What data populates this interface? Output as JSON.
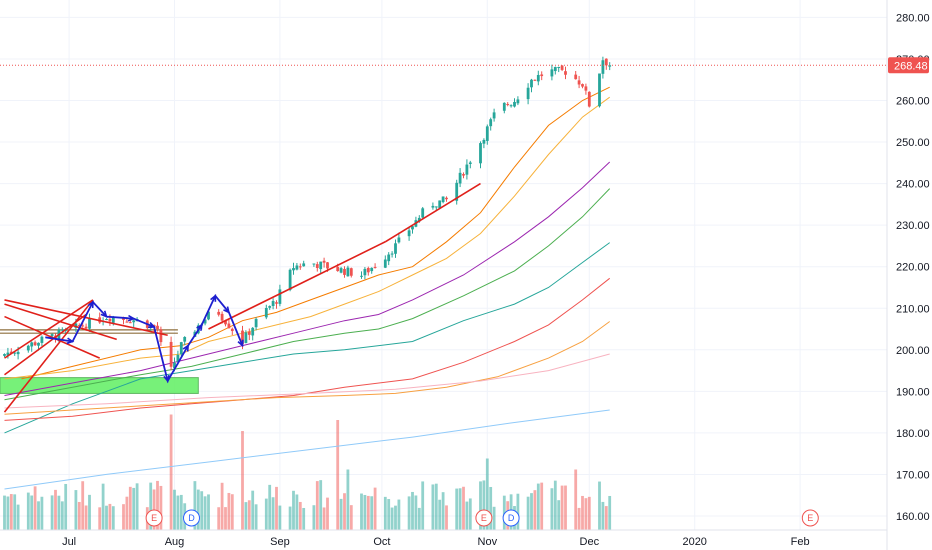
{
  "chart_data": {
    "type": "candlestick",
    "price_axis": {
      "ticks": [
        160,
        170,
        180,
        190,
        200,
        210,
        220,
        230,
        240,
        250,
        260,
        270,
        280
      ],
      "tick_labels": [
        "160.00",
        "170.00",
        "180.00",
        "190.00",
        "200.00",
        "210.00",
        "220.00",
        "230.00",
        "240.00",
        "250.00",
        "260.00",
        "270.00",
        "280.00"
      ],
      "last_price": 268.48,
      "last_price_label": "268.48"
    },
    "time_axis": {
      "labels": [
        {
          "label": "Jul",
          "day": 19
        },
        {
          "label": "Aug",
          "day": 50
        },
        {
          "label": "Sep",
          "day": 81
        },
        {
          "label": "Oct",
          "day": 111
        },
        {
          "label": "Nov",
          "day": 142
        },
        {
          "label": "Dec",
          "day": 172
        },
        {
          "label": "2020",
          "day": 203
        },
        {
          "label": "Feb",
          "day": 234
        }
      ]
    },
    "last_day": 178,
    "events": [
      {
        "letter": "E",
        "day": 44,
        "color": "#ef5350"
      },
      {
        "letter": "D",
        "day": 55,
        "color": "#2962ff"
      },
      {
        "letter": "E",
        "day": 141,
        "color": "#ef5350"
      },
      {
        "letter": "D",
        "day": 149,
        "color": "#2962ff"
      },
      {
        "letter": "E",
        "day": 237,
        "color": "#ef5350"
      }
    ],
    "moving_averages": [
      {
        "color": "#f57c00",
        "points": [
          [
            5,
            193
          ],
          [
            20,
            196
          ],
          [
            40,
            200
          ],
          [
            52,
            201
          ],
          [
            60,
            203
          ],
          [
            70,
            207
          ],
          [
            80,
            209
          ],
          [
            90,
            212
          ],
          [
            100,
            215
          ],
          [
            110,
            218
          ],
          [
            120,
            220
          ],
          [
            130,
            226
          ],
          [
            140,
            233
          ],
          [
            150,
            244
          ],
          [
            160,
            254
          ],
          [
            170,
            260
          ],
          [
            178,
            263.2
          ]
        ]
      },
      {
        "color": "#f7b23b",
        "points": [
          [
            0,
            193
          ],
          [
            20,
            195
          ],
          [
            40,
            198
          ],
          [
            52,
            199
          ],
          [
            60,
            202
          ],
          [
            70,
            204
          ],
          [
            80,
            206
          ],
          [
            90,
            208
          ],
          [
            100,
            211
          ],
          [
            110,
            214
          ],
          [
            120,
            218
          ],
          [
            130,
            222
          ],
          [
            140,
            228
          ],
          [
            150,
            237
          ],
          [
            160,
            247
          ],
          [
            170,
            256
          ],
          [
            178,
            260.8
          ]
        ]
      },
      {
        "color": "#9c27b0",
        "points": [
          [
            0,
            189
          ],
          [
            20,
            192
          ],
          [
            40,
            195
          ],
          [
            55,
            198
          ],
          [
            70,
            201
          ],
          [
            85,
            204
          ],
          [
            100,
            207
          ],
          [
            110,
            208.5
          ],
          [
            120,
            212
          ],
          [
            135,
            218
          ],
          [
            150,
            226
          ],
          [
            160,
            232
          ],
          [
            170,
            239
          ],
          [
            178,
            245.2
          ]
        ]
      },
      {
        "color": "#4caf50",
        "points": [
          [
            0,
            188
          ],
          [
            20,
            191
          ],
          [
            40,
            194
          ],
          [
            55,
            196
          ],
          [
            70,
            199
          ],
          [
            85,
            202
          ],
          [
            100,
            204
          ],
          [
            110,
            205
          ],
          [
            120,
            207.5
          ],
          [
            135,
            213
          ],
          [
            150,
            219
          ],
          [
            160,
            225
          ],
          [
            170,
            232
          ],
          [
            178,
            238.8
          ]
        ]
      },
      {
        "color": "#26a69a",
        "points": [
          [
            0,
            180
          ],
          [
            20,
            187
          ],
          [
            40,
            193
          ],
          [
            55,
            195
          ],
          [
            70,
            197
          ],
          [
            85,
            199
          ],
          [
            100,
            200
          ],
          [
            120,
            202
          ],
          [
            135,
            207
          ],
          [
            150,
            211
          ],
          [
            160,
            215
          ],
          [
            170,
            221
          ],
          [
            178,
            225.8
          ]
        ]
      },
      {
        "color": "#ef5350",
        "points": [
          [
            0,
            183
          ],
          [
            20,
            184
          ],
          [
            40,
            186
          ],
          [
            55,
            187
          ],
          [
            70,
            188
          ],
          [
            85,
            189
          ],
          [
            100,
            191
          ],
          [
            120,
            193
          ],
          [
            135,
            197
          ],
          [
            150,
            202
          ],
          [
            160,
            206
          ],
          [
            170,
            212
          ],
          [
            178,
            217.2
          ]
        ]
      },
      {
        "color": "#f7a040",
        "points": [
          [
            0,
            184.5
          ],
          [
            20,
            185.5
          ],
          [
            40,
            186.5
          ],
          [
            60,
            187.5
          ],
          [
            80,
            188.5
          ],
          [
            100,
            189
          ],
          [
            115,
            189.5
          ],
          [
            130,
            191
          ],
          [
            145,
            193.5
          ],
          [
            160,
            198
          ],
          [
            170,
            202
          ],
          [
            178,
            206.8
          ]
        ]
      },
      {
        "color": "#f8b3c0",
        "points": [
          [
            0,
            186
          ],
          [
            30,
            187
          ],
          [
            60,
            188.5
          ],
          [
            90,
            189.5
          ],
          [
            115,
            190.5
          ],
          [
            140,
            192.5
          ],
          [
            160,
            195
          ],
          [
            178,
            199
          ]
        ]
      },
      {
        "color": "#90caf9",
        "points": [
          [
            0,
            166.5
          ],
          [
            30,
            170
          ],
          [
            60,
            173
          ],
          [
            90,
            176
          ],
          [
            120,
            179
          ],
          [
            150,
            182.5
          ],
          [
            178,
            185.5
          ]
        ]
      }
    ],
    "drawings": {
      "red_lines": [
        {
          "from": [
            0,
            185
          ],
          "to": [
            26,
            212
          ]
        },
        {
          "from": [
            0,
            198
          ],
          "to": [
            26,
            212
          ]
        },
        {
          "from": [
            0,
            194
          ],
          "to": [
            24,
            208.5
          ]
        },
        {
          "from": [
            0,
            208
          ],
          "to": [
            28,
            198
          ]
        },
        {
          "from": [
            0,
            211
          ],
          "to": [
            33,
            202.5
          ]
        },
        {
          "from": [
            48,
            203.5
          ],
          "to": [
            0,
            212
          ]
        },
        {
          "from": [
            60,
            205
          ],
          "to": [
            112,
            226
          ]
        },
        {
          "from": [
            112,
            226
          ],
          "to": [
            140,
            240
          ]
        }
      ],
      "blue_zigzag": [
        [
          12,
          203
        ],
        [
          20,
          202
        ],
        [
          26,
          211.5
        ],
        [
          30,
          208
        ],
        [
          38,
          207.5
        ],
        [
          44,
          205.5
        ],
        [
          48,
          192.5
        ],
        [
          54,
          201
        ],
        [
          58,
          206
        ],
        [
          62,
          213
        ],
        [
          66,
          209
        ],
        [
          70,
          201
        ]
      ],
      "horizontal_levels": [
        {
          "price": 204.8
        },
        {
          "price": 204.0
        }
      ],
      "green_zone": {
        "day_start": 0,
        "day_end": 57,
        "price_low": 189.5,
        "price_high": 193.3
      }
    }
  }
}
